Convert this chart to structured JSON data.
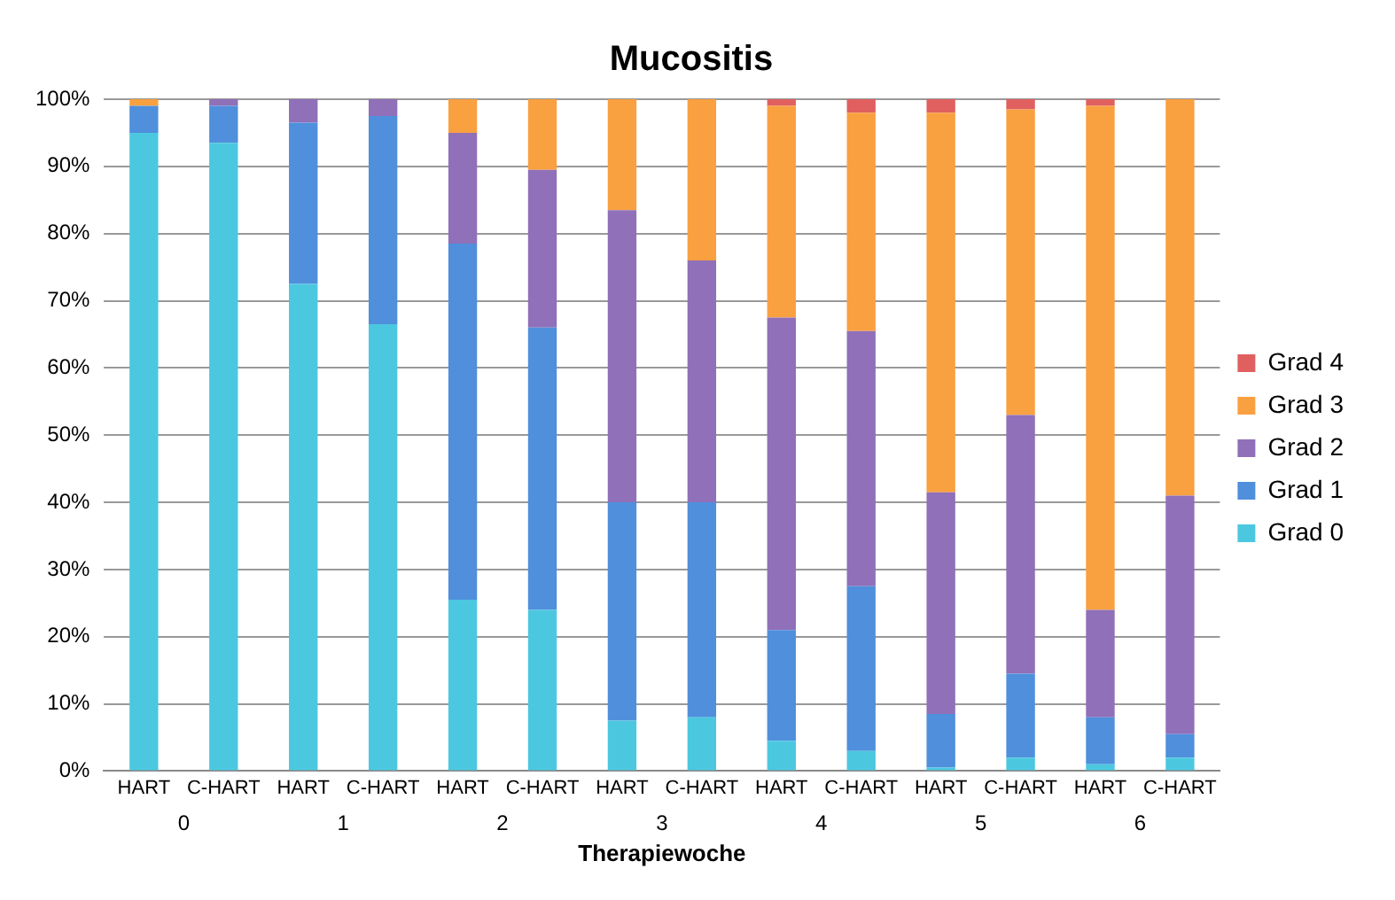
{
  "chart_data": {
    "type": "bar",
    "title": "Mucositis",
    "xlabel": "Therapiewoche",
    "stacked": true,
    "grid": "y",
    "legend": "right",
    "categories": [
      "HART",
      "C-HART",
      "HART",
      "C-HART",
      "HART",
      "C-HART",
      "HART",
      "C-HART",
      "HART",
      "C-HART",
      "HART",
      "C-HART",
      "HART",
      "C-HART"
    ],
    "annotations": [
      "0",
      "1",
      "2",
      "3",
      "4",
      "5",
      "6"
    ],
    "ylim": [
      0,
      100
    ],
    "yticks": [
      {
        "value": 0,
        "label": "0%"
      },
      {
        "value": 10,
        "label": "10%"
      },
      {
        "value": 20,
        "label": "20%"
      },
      {
        "value": 30,
        "label": "30%"
      },
      {
        "value": 40,
        "label": "40%"
      },
      {
        "value": 50,
        "label": "50%"
      },
      {
        "value": 60,
        "label": "60%"
      },
      {
        "value": 70,
        "label": "70%"
      },
      {
        "value": 80,
        "label": "80%"
      },
      {
        "value": 90,
        "label": "90%"
      },
      {
        "value": 100,
        "label": "100%"
      }
    ],
    "series": [
      {
        "name": "Grad 0",
        "color": "#4bc8e0",
        "values": [
          95,
          93.5,
          72.5,
          66.5,
          25.5,
          24,
          7.5,
          8,
          4.5,
          3,
          0.5,
          2,
          1,
          2
        ]
      },
      {
        "name": "Grad 1",
        "color": "#4f8fdc",
        "values": [
          4,
          5.5,
          24,
          31,
          53,
          42,
          32.5,
          32,
          16.5,
          24.5,
          8,
          12.5,
          7,
          3.5
        ]
      },
      {
        "name": "Grad 2",
        "color": "#9070b8",
        "values": [
          0,
          1,
          3.5,
          2.5,
          16.5,
          23.5,
          43.5,
          36,
          46.5,
          38,
          33,
          38.5,
          16,
          35.5
        ]
      },
      {
        "name": "Grad 3",
        "color": "#f9a040",
        "values": [
          1,
          0,
          0,
          0,
          5,
          10.5,
          16.5,
          24,
          31.5,
          32.5,
          56.5,
          45.5,
          75,
          59
        ]
      },
      {
        "name": "Grad 4",
        "color": "#e06060",
        "values": [
          0,
          0,
          0,
          0,
          0,
          0,
          0,
          0,
          1,
          2,
          2,
          1.5,
          1,
          0
        ]
      }
    ]
  }
}
